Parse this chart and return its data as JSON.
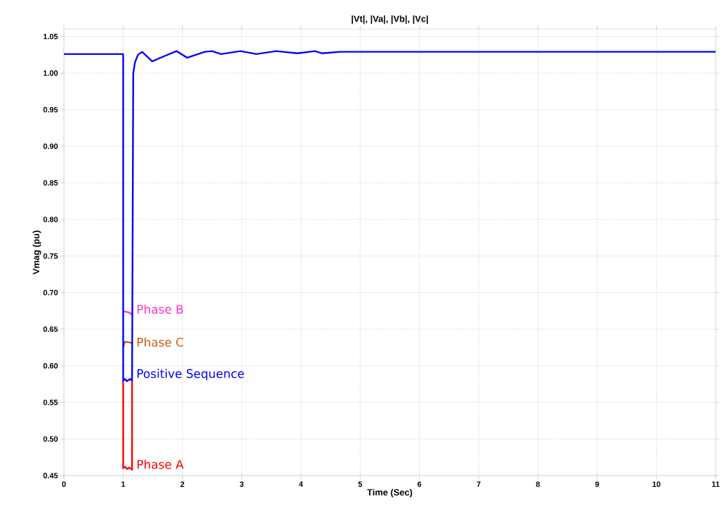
{
  "chart_data": {
    "type": "line",
    "title": "|Vt|, |Va|, |Vb|, |Vc|",
    "xlabel": "Time (Sec)",
    "ylabel": "Vmag (pu)",
    "xlim": [
      0,
      11
    ],
    "ylim": [
      0.45,
      1.06
    ],
    "xticks": [
      0,
      1,
      2,
      3,
      4,
      5,
      6,
      7,
      8,
      9,
      10,
      11
    ],
    "yticks": [
      {
        "value": 0.45,
        "label": "0.45"
      },
      {
        "value": 0.5,
        "label": "0.50"
      },
      {
        "value": 0.55,
        "label": "0.55"
      },
      {
        "value": 0.6,
        "label": "0.60"
      },
      {
        "value": 0.65,
        "label": "0.65"
      },
      {
        "value": 0.7,
        "label": "0.70"
      },
      {
        "value": 0.75,
        "label": "0.75"
      },
      {
        "value": 0.8,
        "label": "0.80"
      },
      {
        "value": 0.85,
        "label": "0.85"
      },
      {
        "value": 0.9,
        "label": "0.90"
      },
      {
        "value": 0.95,
        "label": "0.95"
      },
      {
        "value": 1.0,
        "label": "1.00"
      },
      {
        "value": 1.05,
        "label": "1.05"
      }
    ],
    "grid": true,
    "legend": false,
    "marker": "none",
    "line_style": "solid",
    "series": [
      {
        "name": "Phase A",
        "color": "#ff0000",
        "x": [
          1.0,
          1.0,
          1.03,
          1.07,
          1.1,
          1.15,
          1.15
        ],
        "values": [
          0.58,
          0.46,
          0.462,
          0.459,
          0.461,
          0.458,
          0.58
        ]
      },
      {
        "name": "Phase C",
        "color": "#c55a11",
        "x": [
          1.0,
          1.03,
          1.1,
          1.12,
          1.15
        ],
        "values": [
          0.625,
          0.633,
          0.632,
          0.632,
          0.63
        ]
      },
      {
        "name": "Phase B",
        "color": "#ff33cc",
        "x": [
          1.0,
          1.03,
          1.1,
          1.15
        ],
        "values": [
          0.675,
          0.674,
          0.673,
          0.67
        ]
      },
      {
        "name": "Positive Sequence",
        "color": "#0000ff",
        "x": [
          0,
          1.0,
          1.0,
          1.03,
          1.06,
          1.12,
          1.15,
          1.15,
          1.17,
          1.2,
          1.25,
          1.32,
          1.49,
          1.69,
          1.9,
          2.08,
          2.38,
          2.5,
          2.65,
          2.98,
          3.25,
          3.58,
          3.94,
          4.24,
          4.36,
          4.66,
          11
        ],
        "values": [
          1.026,
          1.026,
          0.58,
          0.582,
          0.579,
          0.582,
          0.58,
          0.58,
          1.0,
          1.015,
          1.025,
          1.029,
          1.016,
          1.023,
          1.03,
          1.021,
          1.029,
          1.03,
          1.026,
          1.03,
          1.026,
          1.03,
          1.027,
          1.03,
          1.027,
          1.029,
          1.029
        ]
      }
    ]
  }
}
